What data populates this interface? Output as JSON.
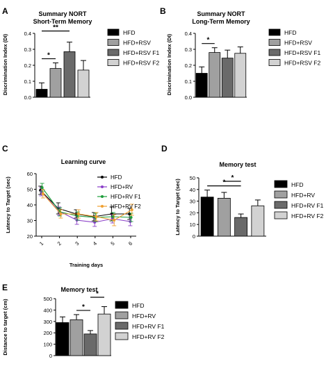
{
  "chart_data": [
    {
      "panel": "A",
      "type": "bar",
      "title": "Summary NORT",
      "subtitle": "Short-Term Memory",
      "ylabel": "Discrimination Index (DI)",
      "xlabel": "",
      "ylim": [
        0,
        0.4
      ],
      "yticks": [
        "0.0",
        "0.1",
        "0.2",
        "0.3",
        "0.4"
      ],
      "categories": [
        "HFD",
        "HFD+RSV",
        "HFD+RSV F1",
        "HFD+RSV F2"
      ],
      "values": [
        0.05,
        0.18,
        0.285,
        0.17
      ],
      "errors": [
        0.04,
        0.035,
        0.06,
        0.06
      ],
      "colors": [
        "#000000",
        "#a0a0a0",
        "#6a6a6a",
        "#d2d2d2"
      ],
      "significance": [
        {
          "from": 0,
          "to": 1,
          "label": "*"
        },
        {
          "from": 0,
          "to": 2,
          "label": "**"
        }
      ],
      "legend": [
        "HFD",
        "HFD+RSV",
        "HFD+RSV F1",
        "HFD+RSV F2"
      ],
      "legend_position": "right"
    },
    {
      "panel": "B",
      "type": "bar",
      "title": "Summary NORT",
      "subtitle": "Long-Term Memory",
      "ylabel": "Discrimination Index (DI)",
      "xlabel": "",
      "ylim": [
        0,
        0.4
      ],
      "yticks": [
        "0.0",
        "0.1",
        "0.2",
        "0.3",
        "0.4"
      ],
      "categories": [
        "HFD",
        "HFD+RSV",
        "HFD+RSV F1",
        "HFD+RSV F2"
      ],
      "values": [
        0.15,
        0.28,
        0.245,
        0.275
      ],
      "errors": [
        0.04,
        0.03,
        0.05,
        0.04
      ],
      "colors": [
        "#000000",
        "#a0a0a0",
        "#6a6a6a",
        "#d2d2d2"
      ],
      "significance": [
        {
          "from": 0,
          "to": 1,
          "label": "*"
        }
      ],
      "legend": [
        "HFD",
        "HFD+RSV",
        "HFD+RSV F1",
        "HFD+RSV F2"
      ],
      "legend_position": "right"
    },
    {
      "panel": "C",
      "type": "line",
      "title": "Learning curve",
      "xlabel": "Training days",
      "ylabel": "Latency to Target (sec)",
      "x": [
        1,
        2,
        3,
        4,
        5,
        6
      ],
      "ylim": [
        15,
        60
      ],
      "yticks": [
        "20",
        "30",
        "40",
        "50",
        "60"
      ],
      "series": [
        {
          "name": "HFD",
          "color": "#000000",
          "values": [
            48,
            35,
            31,
            29,
            31,
            31
          ],
          "errors": [
            3,
            4,
            3,
            3,
            5,
            4
          ]
        },
        {
          "name": "HFD+RV",
          "color": "#8a3ec8",
          "values": [
            47,
            33,
            26.5,
            25,
            27.5,
            25.5
          ],
          "errors": [
            3,
            3,
            3,
            3,
            3,
            3
          ]
        },
        {
          "name": "HFD+RV F1",
          "color": "#1e9e3c",
          "values": [
            50,
            32.5,
            29.5,
            28.5,
            29,
            28.5
          ],
          "errors": [
            3,
            3,
            3,
            3,
            3,
            3
          ]
        },
        {
          "name": "HFD+RV F2",
          "color": "#f0a030",
          "values": [
            45.5,
            31,
            31,
            29,
            26.5,
            34
          ],
          "errors": [
            3,
            3,
            3,
            3,
            4,
            4
          ]
        }
      ],
      "legend_position": "top-right"
    },
    {
      "panel": "D",
      "type": "bar",
      "title": "Memory test",
      "ylabel": "Latency to Target (sec)",
      "xlabel": "",
      "ylim": [
        0,
        50
      ],
      "yticks": [
        "0",
        "10",
        "20",
        "30",
        "40",
        "50"
      ],
      "categories": [
        "HFD",
        "HFD+RV",
        "HFD+RV F1",
        "HFD+RV F2"
      ],
      "values": [
        33.5,
        32.5,
        16,
        26
      ],
      "errors": [
        6,
        5,
        3,
        5
      ],
      "colors": [
        "#000000",
        "#a0a0a0",
        "#6a6a6a",
        "#d2d2d2"
      ],
      "significance": [
        {
          "from": 0,
          "to": 2,
          "label": "*"
        },
        {
          "from": 1,
          "to": 2,
          "label": "*"
        }
      ],
      "legend": [
        "HFD",
        "HFD+RV",
        "HFD+RV F1",
        "HFD+RV F2"
      ],
      "legend_position": "right"
    },
    {
      "panel": "E",
      "type": "bar",
      "title": "Memory test",
      "ylabel": "Distance to target (cm)",
      "xlabel": "",
      "ylim": [
        0,
        500
      ],
      "yticks": [
        "0",
        "100",
        "200",
        "300",
        "400",
        "500"
      ],
      "categories": [
        "HFD",
        "HFD+RV",
        "HFD+RV F1",
        "HFD+RV F2"
      ],
      "values": [
        290,
        315,
        190,
        365
      ],
      "errors": [
        50,
        45,
        30,
        65
      ],
      "colors": [
        "#000000",
        "#a0a0a0",
        "#6a6a6a",
        "#d2d2d2"
      ],
      "significance": [
        {
          "from": 1,
          "to": 2,
          "label": "*"
        },
        {
          "from": 2,
          "to": 3,
          "label": "*"
        }
      ],
      "legend": [
        "HFD",
        "HFD+RV",
        "HFD+RV F1",
        "HFD+RV F2"
      ],
      "legend_position": "right"
    }
  ]
}
